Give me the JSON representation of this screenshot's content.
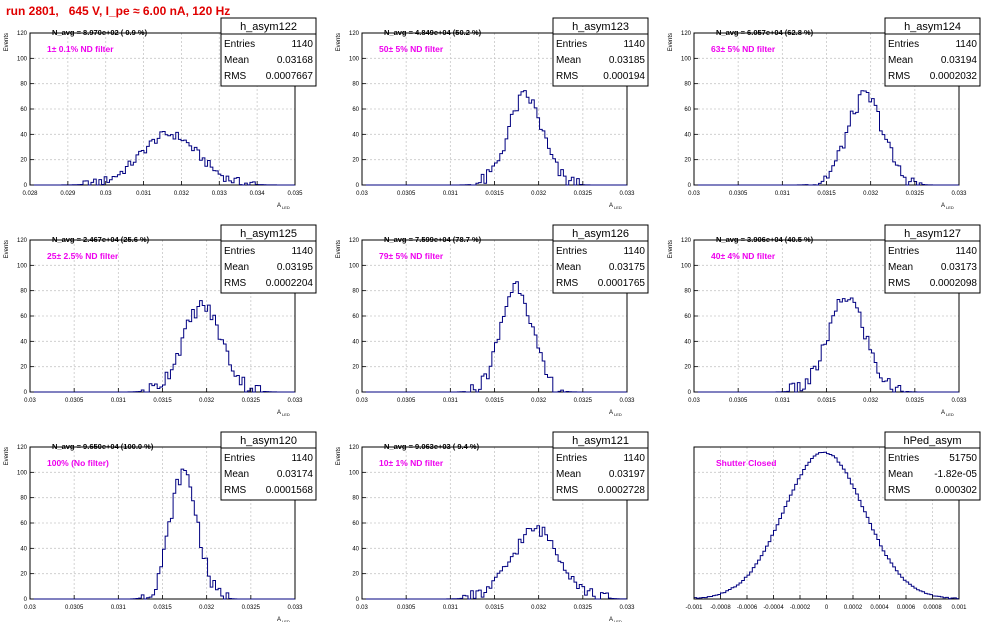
{
  "header": {
    "run_title": "run 2801,   645 V, I_pe ≈ 6.00 nA, 120 Hz"
  },
  "styles": {
    "title_color": "#e00000",
    "filter_label_color": "#ee00ee",
    "histogram_color": "#000080",
    "grid_color": "#c8c8c8"
  },
  "chart_data": [
    {
      "type": "histogram",
      "title": "h_asym122",
      "stats": {
        "entries_label": "Entries",
        "entries": "1140",
        "mean_label": "Mean",
        "mean": "0.03168",
        "rms_label": "RMS",
        "rms": "0.0007667"
      },
      "navg": "N_avg = 8.970e+02 ( 0.9 %)",
      "filter_label": "1± 0.1% ND filter",
      "ylabel": "Events",
      "xlabel": "A_{LED}",
      "xlim": [
        0.028,
        0.035
      ],
      "ylim": [
        0,
        120
      ],
      "xticks": [
        "0.028",
        "0.029",
        "0.03",
        "0.031",
        "0.032",
        "0.033",
        "0.034",
        "0.035"
      ],
      "yticks": [
        "0",
        "20",
        "40",
        "60",
        "80",
        "100",
        "120"
      ],
      "distribution": {
        "peak": 40,
        "mean": 0.03168,
        "rms": 0.0007667
      }
    },
    {
      "type": "histogram",
      "title": "h_asym123",
      "stats": {
        "entries_label": "Entries",
        "entries": "1140",
        "mean_label": "Mean",
        "mean": "0.03185",
        "rms_label": "RMS",
        "rms": "0.000194"
      },
      "navg": "N_avg = 4.849e+04 (50.2 %)",
      "filter_label": "50± 5% ND filter",
      "ylabel": "Events",
      "xlabel": "A_{LED}",
      "xlim": [
        0.03,
        0.033
      ],
      "ylim": [
        0,
        120
      ],
      "xticks": [
        "0.03",
        "0.0305",
        "0.031",
        "0.0315",
        "0.032",
        "0.0325",
        "0.033"
      ],
      "yticks": [
        "0",
        "20",
        "40",
        "60",
        "80",
        "100",
        "120"
      ],
      "distribution": {
        "peak": 70,
        "mean": 0.03185,
        "rms": 0.000194
      }
    },
    {
      "type": "histogram",
      "title": "h_asym124",
      "stats": {
        "entries_label": "Entries",
        "entries": "1140",
        "mean_label": "Mean",
        "mean": "0.03194",
        "rms_label": "RMS",
        "rms": "0.0002032"
      },
      "navg": "N_avg = 6.057e+04 (62.8 %)",
      "filter_label": "63± 5% ND filter",
      "ylabel": "Events",
      "xlabel": "A_{LED}",
      "xlim": [
        0.03,
        0.033
      ],
      "ylim": [
        0,
        120
      ],
      "xticks": [
        "0.03",
        "0.0305",
        "0.031",
        "0.0315",
        "0.032",
        "0.0325",
        "0.033"
      ],
      "yticks": [
        "0",
        "20",
        "40",
        "60",
        "80",
        "100",
        "120"
      ],
      "distribution": {
        "peak": 70,
        "mean": 0.03194,
        "rms": 0.0002032
      }
    },
    {
      "type": "histogram",
      "title": "h_asym125",
      "stats": {
        "entries_label": "Entries",
        "entries": "1140",
        "mean_label": "Mean",
        "mean": "0.03195",
        "rms_label": "RMS",
        "rms": "0.0002204"
      },
      "navg": "N_avg = 2.467e+04 (25.6 %)",
      "filter_label": "25± 2.5% ND filter",
      "ylabel": "Events",
      "xlabel": "A_{LED}",
      "xlim": [
        0.03,
        0.033
      ],
      "ylim": [
        0,
        120
      ],
      "xticks": [
        "0.03",
        "0.0305",
        "0.031",
        "0.0315",
        "0.032",
        "0.0325",
        "0.033"
      ],
      "yticks": [
        "0",
        "20",
        "40",
        "60",
        "80",
        "100",
        "120"
      ],
      "distribution": {
        "peak": 68,
        "mean": 0.03195,
        "rms": 0.0002204
      }
    },
    {
      "type": "histogram",
      "title": "h_asym126",
      "stats": {
        "entries_label": "Entries",
        "entries": "1140",
        "mean_label": "Mean",
        "mean": "0.03175",
        "rms_label": "RMS",
        "rms": "0.0001765"
      },
      "navg": "N_avg = 7.599e+04 (78.7 %)",
      "filter_label": "79± 5% ND filter",
      "ylabel": "Events",
      "xlabel": "A_{LED}",
      "xlim": [
        0.03,
        0.033
      ],
      "ylim": [
        0,
        120
      ],
      "xticks": [
        "0.03",
        "0.0305",
        "0.031",
        "0.0315",
        "0.032",
        "0.0325",
        "0.033"
      ],
      "yticks": [
        "0",
        "20",
        "40",
        "60",
        "80",
        "100",
        "120"
      ],
      "distribution": {
        "peak": 85,
        "mean": 0.03175,
        "rms": 0.0001765
      }
    },
    {
      "type": "histogram",
      "title": "h_asym127",
      "stats": {
        "entries_label": "Entries",
        "entries": "1140",
        "mean_label": "Mean",
        "mean": "0.03173",
        "rms_label": "RMS",
        "rms": "0.0002098"
      },
      "navg": "N_avg = 3.906e+04 (40.5 %)",
      "filter_label": "40± 4% ND filter",
      "ylabel": "Events",
      "xlabel": "A_{LED}",
      "xlim": [
        0.03,
        0.033
      ],
      "ylim": [
        0,
        120
      ],
      "xticks": [
        "0.03",
        "0.0305",
        "0.031",
        "0.0315",
        "0.032",
        "0.0325",
        "0.033"
      ],
      "yticks": [
        "0",
        "20",
        "40",
        "60",
        "80",
        "100",
        "120"
      ],
      "distribution": {
        "peak": 75,
        "mean": 0.03173,
        "rms": 0.0002098
      }
    },
    {
      "type": "histogram",
      "title": "h_asym120",
      "stats": {
        "entries_label": "Entries",
        "entries": "1140",
        "mean_label": "Mean",
        "mean": "0.03174",
        "rms_label": "RMS",
        "rms": "0.0001568"
      },
      "navg": "N_avg = 9.650e+04 (100.0 %)",
      "filter_label": "100% (No filter)",
      "ylabel": "Events",
      "xlabel": "A_{LED}",
      "xlim": [
        0.03,
        0.033
      ],
      "ylim": [
        0,
        120
      ],
      "xticks": [
        "0.03",
        "0.0305",
        "0.031",
        "0.0315",
        "0.032",
        "0.0325",
        "0.033"
      ],
      "yticks": [
        "0",
        "20",
        "40",
        "60",
        "80",
        "100",
        "120"
      ],
      "distribution": {
        "peak": 100,
        "mean": 0.03174,
        "rms": 0.0001568
      }
    },
    {
      "type": "histogram",
      "title": "h_asym121",
      "stats": {
        "entries_label": "Entries",
        "entries": "1140",
        "mean_label": "Mean",
        "mean": "0.03197",
        "rms_label": "RMS",
        "rms": "0.0002728"
      },
      "navg": "N_avg = 9.063e+03 ( 9.4 %)",
      "filter_label": "10± 1% ND filter",
      "ylabel": "Events",
      "xlabel": "A_{LED}",
      "xlim": [
        0.03,
        0.033
      ],
      "ylim": [
        0,
        120
      ],
      "xticks": [
        "0.03",
        "0.0305",
        "0.031",
        "0.0315",
        "0.032",
        "0.0325",
        "0.033"
      ],
      "yticks": [
        "0",
        "20",
        "40",
        "60",
        "80",
        "100",
        "120"
      ],
      "distribution": {
        "peak": 55,
        "mean": 0.03197,
        "rms": 0.0002728
      }
    },
    {
      "type": "histogram",
      "title": "hPed_asym",
      "stats": {
        "entries_label": "Entries",
        "entries": "51750",
        "mean_label": "Mean",
        "mean": "-1.82e-05",
        "rms_label": "RMS",
        "rms": "0.000302"
      },
      "navg": "",
      "filter_label": "Shutter Closed",
      "ylabel": "",
      "xlabel": "",
      "xlim": [
        -0.001,
        0.001
      ],
      "ylim": [
        0,
        1400
      ],
      "xticks": [
        "-0.001",
        "-0.0008",
        "-0.0006",
        "-0.0004",
        "-0.0002",
        "0",
        "0.0002",
        "0.0004",
        "0.0006",
        "0.0008",
        "0.001"
      ],
      "yticks": [],
      "distribution": {
        "peak": 1350,
        "mean": -1.82e-05,
        "rms": 0.000302
      }
    }
  ]
}
